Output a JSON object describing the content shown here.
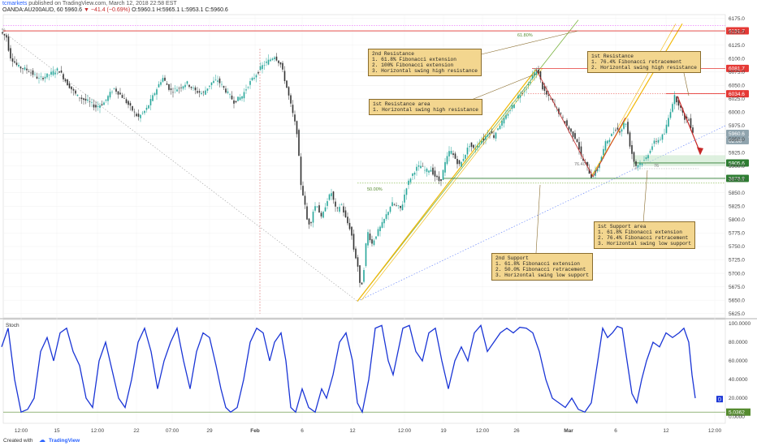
{
  "header": {
    "author": "tcmarkets",
    "published": "published on TradingView.com, March 12, 2018 22:58 EST",
    "symbol": "OANDA:AU200AUD, 60",
    "last": "5960.6",
    "change": "▼ −41.4 (−0.69%)",
    "ohlc": "O:5960.1 H:5965.1 L:5953.1 C:5960.6"
  },
  "footer": {
    "created_with": "Created with",
    "brand": "TradingView"
  },
  "colors": {
    "resistance": "#e53935",
    "support": "#2e7d32",
    "up_candle": "#26a69a",
    "down_candle": "#333333",
    "stoch": "#1a35d6",
    "fib_up": "#f2b705",
    "fib_green": "#7cb342",
    "callout_bg": "#f3d68f",
    "arrow": "#c62828"
  },
  "chart_data": [
    {
      "type": "candlestick",
      "title": "",
      "x_ticks": [
        "12:00",
        "15",
        "12:00",
        "22",
        "07:00",
        "29",
        "Feb",
        "6",
        "12",
        "12:00",
        "19",
        "12:00",
        "26",
        "Mar",
        "6",
        "12",
        "12:00"
      ],
      "y_ticks": [
        "6175.0",
        "6150.0",
        "6125.0",
        "6100.0",
        "6075.0",
        "6050.0",
        "6025.0",
        "6000.0",
        "5975.0",
        "5950.0",
        "5925.0",
        "5900.0",
        "5875.0",
        "5850.0",
        "5825.0",
        "5800.0",
        "5775.0",
        "5750.0",
        "5725.0",
        "5700.0",
        "5675.0",
        "5650.0",
        "5625.0"
      ],
      "ylim": [
        5617,
        6182
      ],
      "price_path": [
        [
          0,
          6150
        ],
        [
          8,
          6140
        ],
        [
          12,
          6105
        ],
        [
          22,
          6085
        ],
        [
          35,
          6078
        ],
        [
          48,
          6062
        ],
        [
          60,
          6070
        ],
        [
          72,
          6080
        ],
        [
          82,
          6055
        ],
        [
          95,
          6030
        ],
        [
          108,
          6020
        ],
        [
          118,
          6010
        ],
        [
          128,
          6018
        ],
        [
          140,
          6045
        ],
        [
          150,
          6030
        ],
        [
          160,
          6010
        ],
        [
          170,
          5990
        ],
        [
          180,
          6005
        ],
        [
          190,
          6035
        ],
        [
          200,
          6065
        ],
        [
          210,
          6040
        ],
        [
          220,
          6045
        ],
        [
          230,
          6055
        ],
        [
          240,
          6040
        ],
        [
          250,
          6035
        ],
        [
          260,
          6055
        ],
        [
          268,
          6060
        ],
        [
          278,
          6040
        ],
        [
          288,
          6020
        ],
        [
          298,
          6030
        ],
        [
          305,
          6050
        ],
        [
          315,
          6070
        ],
        [
          322,
          6085
        ],
        [
          330,
          6095
        ],
        [
          338,
          6105
        ],
        [
          346,
          6088
        ],
        [
          354,
          6040
        ],
        [
          360,
          6000
        ],
        [
          366,
          5960
        ],
        [
          370,
          5870
        ],
        [
          374,
          5840
        ],
        [
          378,
          5800
        ],
        [
          382,
          5790
        ],
        [
          386,
          5820
        ],
        [
          390,
          5830
        ],
        [
          396,
          5800
        ],
        [
          402,
          5835
        ],
        [
          408,
          5850
        ],
        [
          414,
          5815
        ],
        [
          420,
          5830
        ],
        [
          426,
          5800
        ],
        [
          432,
          5780
        ],
        [
          436,
          5740
        ],
        [
          440,
          5720
        ],
        [
          444,
          5665
        ],
        [
          448,
          5710
        ],
        [
          452,
          5780
        ],
        [
          458,
          5755
        ],
        [
          464,
          5775
        ],
        [
          470,
          5790
        ],
        [
          476,
          5810
        ],
        [
          482,
          5830
        ],
        [
          488,
          5825
        ],
        [
          494,
          5820
        ],
        [
          500,
          5860
        ],
        [
          506,
          5880
        ],
        [
          512,
          5895
        ],
        [
          518,
          5900
        ],
        [
          524,
          5890
        ],
        [
          530,
          5895
        ],
        [
          536,
          5880
        ],
        [
          542,
          5870
        ],
        [
          548,
          5905
        ],
        [
          554,
          5930
        ],
        [
          560,
          5915
        ],
        [
          566,
          5900
        ],
        [
          572,
          5920
        ],
        [
          578,
          5940
        ],
        [
          584,
          5930
        ],
        [
          590,
          5945
        ],
        [
          596,
          5950
        ],
        [
          602,
          5965
        ],
        [
          608,
          5955
        ],
        [
          614,
          5975
        ],
        [
          620,
          5985
        ],
        [
          626,
          6000
        ],
        [
          632,
          6015
        ],
        [
          638,
          6030
        ],
        [
          644,
          6040
        ],
        [
          650,
          6050
        ],
        [
          656,
          6070
        ],
        [
          662,
          6080
        ],
        [
          668,
          6045
        ],
        [
          674,
          6030
        ],
        [
          680,
          6020
        ],
        [
          686,
          6005
        ],
        [
          692,
          5990
        ],
        [
          698,
          5975
        ],
        [
          704,
          5960
        ],
        [
          710,
          5950
        ],
        [
          716,
          5915
        ],
        [
          722,
          5900
        ],
        [
          728,
          5880
        ],
        [
          734,
          5890
        ],
        [
          740,
          5915
        ],
        [
          746,
          5945
        ],
        [
          752,
          5955
        ],
        [
          758,
          5970
        ],
        [
          764,
          5965
        ],
        [
          770,
          5985
        ],
        [
          776,
          5935
        ],
        [
          782,
          5900
        ],
        [
          788,
          5905
        ],
        [
          794,
          5910
        ],
        [
          800,
          5930
        ],
        [
          806,
          5945
        ],
        [
          812,
          5950
        ],
        [
          818,
          5960
        ],
        [
          824,
          5995
        ],
        [
          830,
          6030
        ],
        [
          836,
          6015
        ],
        [
          842,
          5990
        ],
        [
          848,
          5985
        ],
        [
          854,
          5960
        ]
      ],
      "levels": [
        {
          "label": "6151.7",
          "value": 6151.7,
          "color": "#e53935"
        },
        {
          "label": "6081.7",
          "value": 6081.7,
          "color": "#e53935"
        },
        {
          "label": "6034.6",
          "value": 6034.6,
          "color": "#e53935"
        },
        {
          "label": "5960.6",
          "value": 5960.6,
          "color": "#90a4ae"
        },
        {
          "label": "02:00",
          "value": 5947,
          "color": "#90a4ae"
        },
        {
          "label": "5905.6",
          "value": 5905.6,
          "color": "#2e7d32"
        },
        {
          "label": "5876.9",
          "value": 5876.9,
          "color": "#2e7d32"
        }
      ],
      "fib_labels": [
        {
          "text": "%",
          "at": "top-left"
        },
        {
          "text": "61.80%",
          "at": "top"
        },
        {
          "text": "50.00%",
          "at": "left"
        },
        {
          "text": "76.40%",
          "at": "middle"
        },
        {
          "text": "76",
          "at": "right"
        }
      ],
      "annotations": [
        {
          "title": "2nd Resistance",
          "lines": [
            "1. 61.8% Fibonacci extension",
            "2. 100% Fibonacci extension",
            "3. Horizontal swing high resistance"
          ]
        },
        {
          "title": "1st Resistance area",
          "lines": [
            "1. Horizontal swing high resistance"
          ]
        },
        {
          "title": "1st Resistance",
          "lines": [
            "1. 76.4% Fibonacci retracement",
            "2. Horizontal swing high resistance"
          ]
        },
        {
          "title": "2nd Support",
          "lines": [
            "1. 61.8% Fibonacci extension",
            "2. 50.0% Fibonacci retracement",
            "3. Horizontal swing low support"
          ]
        },
        {
          "title": "1st Support area",
          "lines": [
            "1. 61.8% Fibonacci extension",
            "2. 76.4% Fibonacci retracement",
            "3. Horizontal swing low support"
          ]
        }
      ]
    },
    {
      "type": "line",
      "title": "Stoch",
      "y_ticks": [
        "100.0000",
        "80.0000",
        "60.0000",
        "40.0000",
        "20.0000",
        "0.0000"
      ],
      "ylim": [
        0,
        100
      ],
      "badges": [
        {
          "label": "D",
          "value": 19
        },
        {
          "label": "5.0362",
          "value": 5.04
        }
      ],
      "series": [
        {
          "values": [
            [
              2,
              75
            ],
            [
              10,
              95
            ],
            [
              18,
              40
            ],
            [
              26,
              5
            ],
            [
              34,
              8
            ],
            [
              42,
              20
            ],
            [
              50,
              70
            ],
            [
              58,
              85
            ],
            [
              66,
              60
            ],
            [
              74,
              90
            ],
            [
              82,
              95
            ],
            [
              90,
              70
            ],
            [
              98,
              55
            ],
            [
              106,
              20
            ],
            [
              114,
              10
            ],
            [
              122,
              60
            ],
            [
              130,
              80
            ],
            [
              138,
              50
            ],
            [
              146,
              20
            ],
            [
              154,
              10
            ],
            [
              162,
              40
            ],
            [
              170,
              80
            ],
            [
              178,
              95
            ],
            [
              186,
              70
            ],
            [
              194,
              30
            ],
            [
              202,
              60
            ],
            [
              210,
              80
            ],
            [
              218,
              95
            ],
            [
              226,
              60
            ],
            [
              234,
              30
            ],
            [
              242,
              70
            ],
            [
              250,
              90
            ],
            [
              258,
              85
            ],
            [
              266,
              55
            ],
            [
              272,
              30
            ],
            [
              278,
              10
            ],
            [
              284,
              5
            ],
            [
              292,
              10
            ],
            [
              300,
              40
            ],
            [
              308,
              80
            ],
            [
              316,
              95
            ],
            [
              324,
              90
            ],
            [
              332,
              60
            ],
            [
              338,
              80
            ],
            [
              346,
              90
            ],
            [
              352,
              60
            ],
            [
              358,
              10
            ],
            [
              364,
              5
            ],
            [
              372,
              30
            ],
            [
              380,
              10
            ],
            [
              388,
              5
            ],
            [
              396,
              30
            ],
            [
              402,
              20
            ],
            [
              410,
              45
            ],
            [
              418,
              80
            ],
            [
              426,
              90
            ],
            [
              434,
              60
            ],
            [
              440,
              15
            ],
            [
              446,
              5
            ],
            [
              454,
              40
            ],
            [
              462,
              95
            ],
            [
              470,
              98
            ],
            [
              478,
              60
            ],
            [
              484,
              45
            ],
            [
              490,
              70
            ],
            [
              496,
              95
            ],
            [
              504,
              98
            ],
            [
              512,
              70
            ],
            [
              520,
              60
            ],
            [
              528,
              90
            ],
            [
              536,
              95
            ],
            [
              544,
              60
            ],
            [
              552,
              30
            ],
            [
              560,
              60
            ],
            [
              568,
              75
            ],
            [
              576,
              60
            ],
            [
              584,
              90
            ],
            [
              592,
              98
            ],
            [
              600,
              70
            ],
            [
              608,
              80
            ],
            [
              616,
              90
            ],
            [
              624,
              95
            ],
            [
              632,
              90
            ],
            [
              640,
              96
            ],
            [
              648,
              95
            ],
            [
              656,
              90
            ],
            [
              664,
              70
            ],
            [
              672,
              40
            ],
            [
              680,
              20
            ],
            [
              688,
              15
            ],
            [
              696,
              10
            ],
            [
              704,
              20
            ],
            [
              712,
              8
            ],
            [
              720,
              5
            ],
            [
              728,
              15
            ],
            [
              736,
              60
            ],
            [
              742,
              95
            ],
            [
              748,
              85
            ],
            [
              754,
              90
            ],
            [
              760,
              97
            ],
            [
              766,
              95
            ],
            [
              772,
              60
            ],
            [
              778,
              25
            ],
            [
              784,
              15
            ],
            [
              790,
              40
            ],
            [
              796,
              60
            ],
            [
              804,
              80
            ],
            [
              812,
              75
            ],
            [
              820,
              90
            ],
            [
              828,
              85
            ],
            [
              836,
              90
            ],
            [
              842,
              95
            ],
            [
              848,
              80
            ],
            [
              852,
              45
            ],
            [
              856,
              20
            ]
          ]
        }
      ]
    }
  ]
}
